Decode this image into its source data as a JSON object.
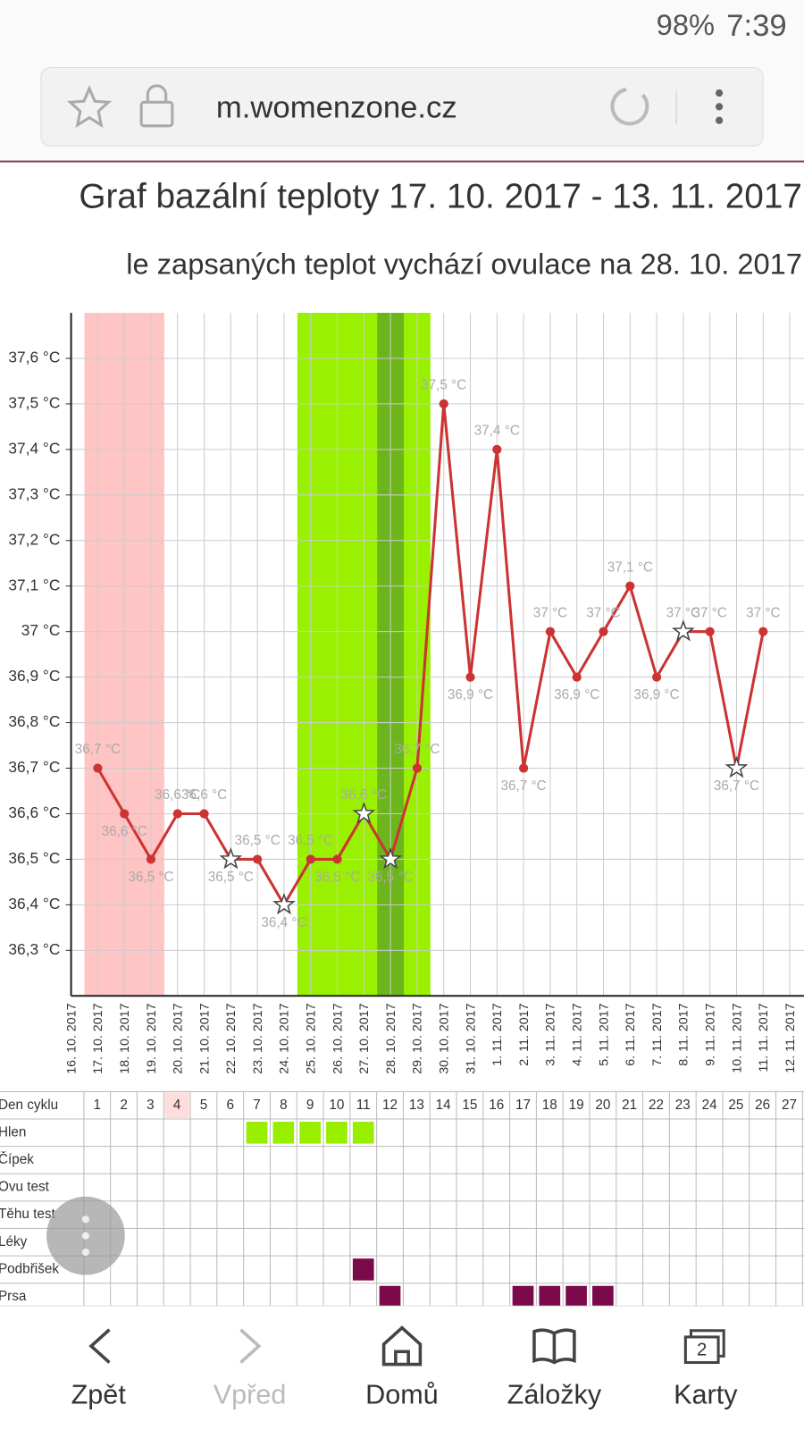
{
  "status": {
    "battery": "98%",
    "time": "7:39"
  },
  "browser": {
    "url": "m.womenzone.cz"
  },
  "chart_data": {
    "type": "line",
    "title": "Graf bazální teploty 17. 10. 2017 - 13. 11. 2017",
    "subtitle": "le zapsaných teplot vychází ovulace na 28. 10. 2017",
    "categories": [
      "16. 10. 2017",
      "17. 10. 2017",
      "18. 10. 2017",
      "19. 10. 2017",
      "20. 10. 2017",
      "21. 10. 2017",
      "22. 10. 2017",
      "23. 10. 2017",
      "24. 10. 2017",
      "25. 10. 2017",
      "26. 10. 2017",
      "27. 10. 2017",
      "28. 10. 2017",
      "29. 10. 2017",
      "30. 10. 2017",
      "31. 10. 2017",
      "1. 11. 2017",
      "2. 11. 2017",
      "3. 11. 2017",
      "4. 11. 2017",
      "5. 11. 2017",
      "6. 11. 2017",
      "7. 11. 2017",
      "8. 11. 2017",
      "9. 11. 2017",
      "10. 11. 2017",
      "11. 11. 2017",
      "12. 11. 2017"
    ],
    "series": [
      {
        "color": "#cc3333",
        "values": [
          null,
          36.7,
          36.6,
          36.5,
          36.6,
          36.6,
          36.5,
          36.5,
          36.4,
          36.5,
          36.5,
          36.6,
          36.5,
          36.7,
          37.5,
          36.9,
          37.4,
          36.7,
          37.0,
          36.9,
          37.0,
          37.1,
          36.9,
          37.0,
          37.0,
          36.7,
          37.0,
          null
        ],
        "value_labels": [
          null,
          "36,7 °C",
          "36,6 °C",
          "36,5 °C",
          "36,6 °C",
          "36,6 °C",
          "36,5 °C",
          "36,5 °C",
          "36,4 °C",
          "36,5 °C",
          "36,5 °C",
          "36,6 °C",
          "36,5 °C",
          "36,7 °C",
          "37,5 °C",
          "36,9 °C",
          "37,4 °C",
          "36,7 °C",
          "37 °C",
          "36,9 °C",
          "37 °C",
          "37,1 °C",
          "36,9 °C",
          "37 °C",
          "37 °C",
          "36,7 °C",
          "37 °C",
          null
        ],
        "stars": [
          6,
          8,
          11,
          12,
          23,
          25
        ]
      }
    ],
    "ylim": [
      36.2,
      37.7
    ],
    "yticks": [
      {
        "value": 36.3,
        "label": "36,3 °C"
      },
      {
        "value": 36.4,
        "label": "36,4 °C"
      },
      {
        "value": 36.5,
        "label": "36,5 °C"
      },
      {
        "value": 36.6,
        "label": "36,6 °C"
      },
      {
        "value": 36.7,
        "label": "36,7 °C"
      },
      {
        "value": 36.8,
        "label": "36,8 °C"
      },
      {
        "value": 36.9,
        "label": "36,9 °C"
      },
      {
        "value": 37,
        "label": "37 °C"
      },
      {
        "value": 37.1,
        "label": "37,1 °C"
      },
      {
        "value": 37.2,
        "label": "37,2 °C"
      },
      {
        "value": 37.3,
        "label": "37,3 °C"
      },
      {
        "value": 37.4,
        "label": "37,4 °C"
      },
      {
        "value": 37.5,
        "label": "37,5 °C"
      },
      {
        "value": 37.6,
        "label": "37,6 °C"
      }
    ],
    "grid": true,
    "highlights": [
      {
        "from": "17. 10. 2017",
        "to": "19. 10. 2017",
        "color": "#ffc4c4"
      },
      {
        "from": "25. 10. 2017",
        "to": "29. 10. 2017",
        "color": "#99f000"
      },
      {
        "from": "28. 10. 2017",
        "to": "28. 10. 2017",
        "color": "#6db51c"
      }
    ]
  },
  "table": {
    "header": "Den cyklu",
    "days": [
      1,
      2,
      3,
      4,
      5,
      6,
      7,
      8,
      9,
      10,
      11,
      12,
      13,
      14,
      15,
      16,
      17,
      18,
      19,
      20,
      21,
      22,
      23,
      24,
      25,
      26,
      27
    ],
    "highlight_day": 4,
    "rows": [
      {
        "label": "Hlen",
        "color": "#99ee00",
        "days": [
          7,
          8,
          9,
          10,
          11
        ]
      },
      {
        "label": "Čípek",
        "color": "#7a0a4a",
        "days": []
      },
      {
        "label": "Ovu test",
        "color": "#7a0a4a",
        "days": []
      },
      {
        "label": "Těhu test",
        "color": "#7a0a4a",
        "days": []
      },
      {
        "label": "Léky",
        "color": "#7a0a4a",
        "days": []
      },
      {
        "label": "Podbřišek",
        "color": "#7a0a4a",
        "days": [
          11
        ]
      },
      {
        "label": "Prsa",
        "color": "#7a0a4a",
        "days": [
          12,
          17,
          18,
          19,
          20
        ]
      }
    ]
  },
  "nav": {
    "back": "Zpět",
    "forward": "Vpřed",
    "home": "Domů",
    "bookmarks": "Záložky",
    "tabs": "Karty",
    "tab_count": "2"
  }
}
